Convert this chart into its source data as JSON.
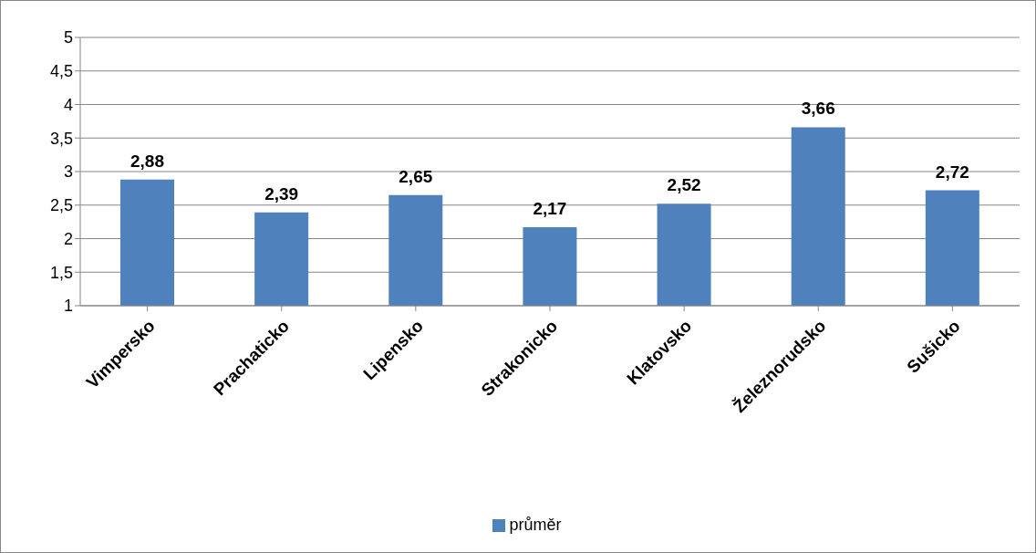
{
  "chart_data": {
    "type": "bar",
    "categories": [
      "Vimpersko",
      "Prachaticko",
      "Lipensko",
      "Strakonicko",
      "Klatovsko",
      "Železnorudsko",
      "Sušicko"
    ],
    "series": [
      {
        "name": "průměr",
        "color": "#4f81bd",
        "values": [
          2.88,
          2.39,
          2.65,
          2.17,
          2.52,
          3.66,
          2.72
        ],
        "value_labels": [
          "2,88",
          "2,39",
          "2,65",
          "2,17",
          "2,52",
          "3,66",
          "2,72"
        ]
      }
    ],
    "ylim": [
      1,
      5
    ],
    "yticks": [
      1,
      {
        "value": 1.5,
        "label": "1,5"
      },
      2,
      {
        "value": 2.5,
        "label": "2,5"
      },
      3,
      {
        "value": 3.5,
        "label": "3,5"
      },
      4,
      {
        "value": 4.5,
        "label": "4,5"
      },
      5
    ],
    "grid": "y",
    "legend": "bottom"
  }
}
